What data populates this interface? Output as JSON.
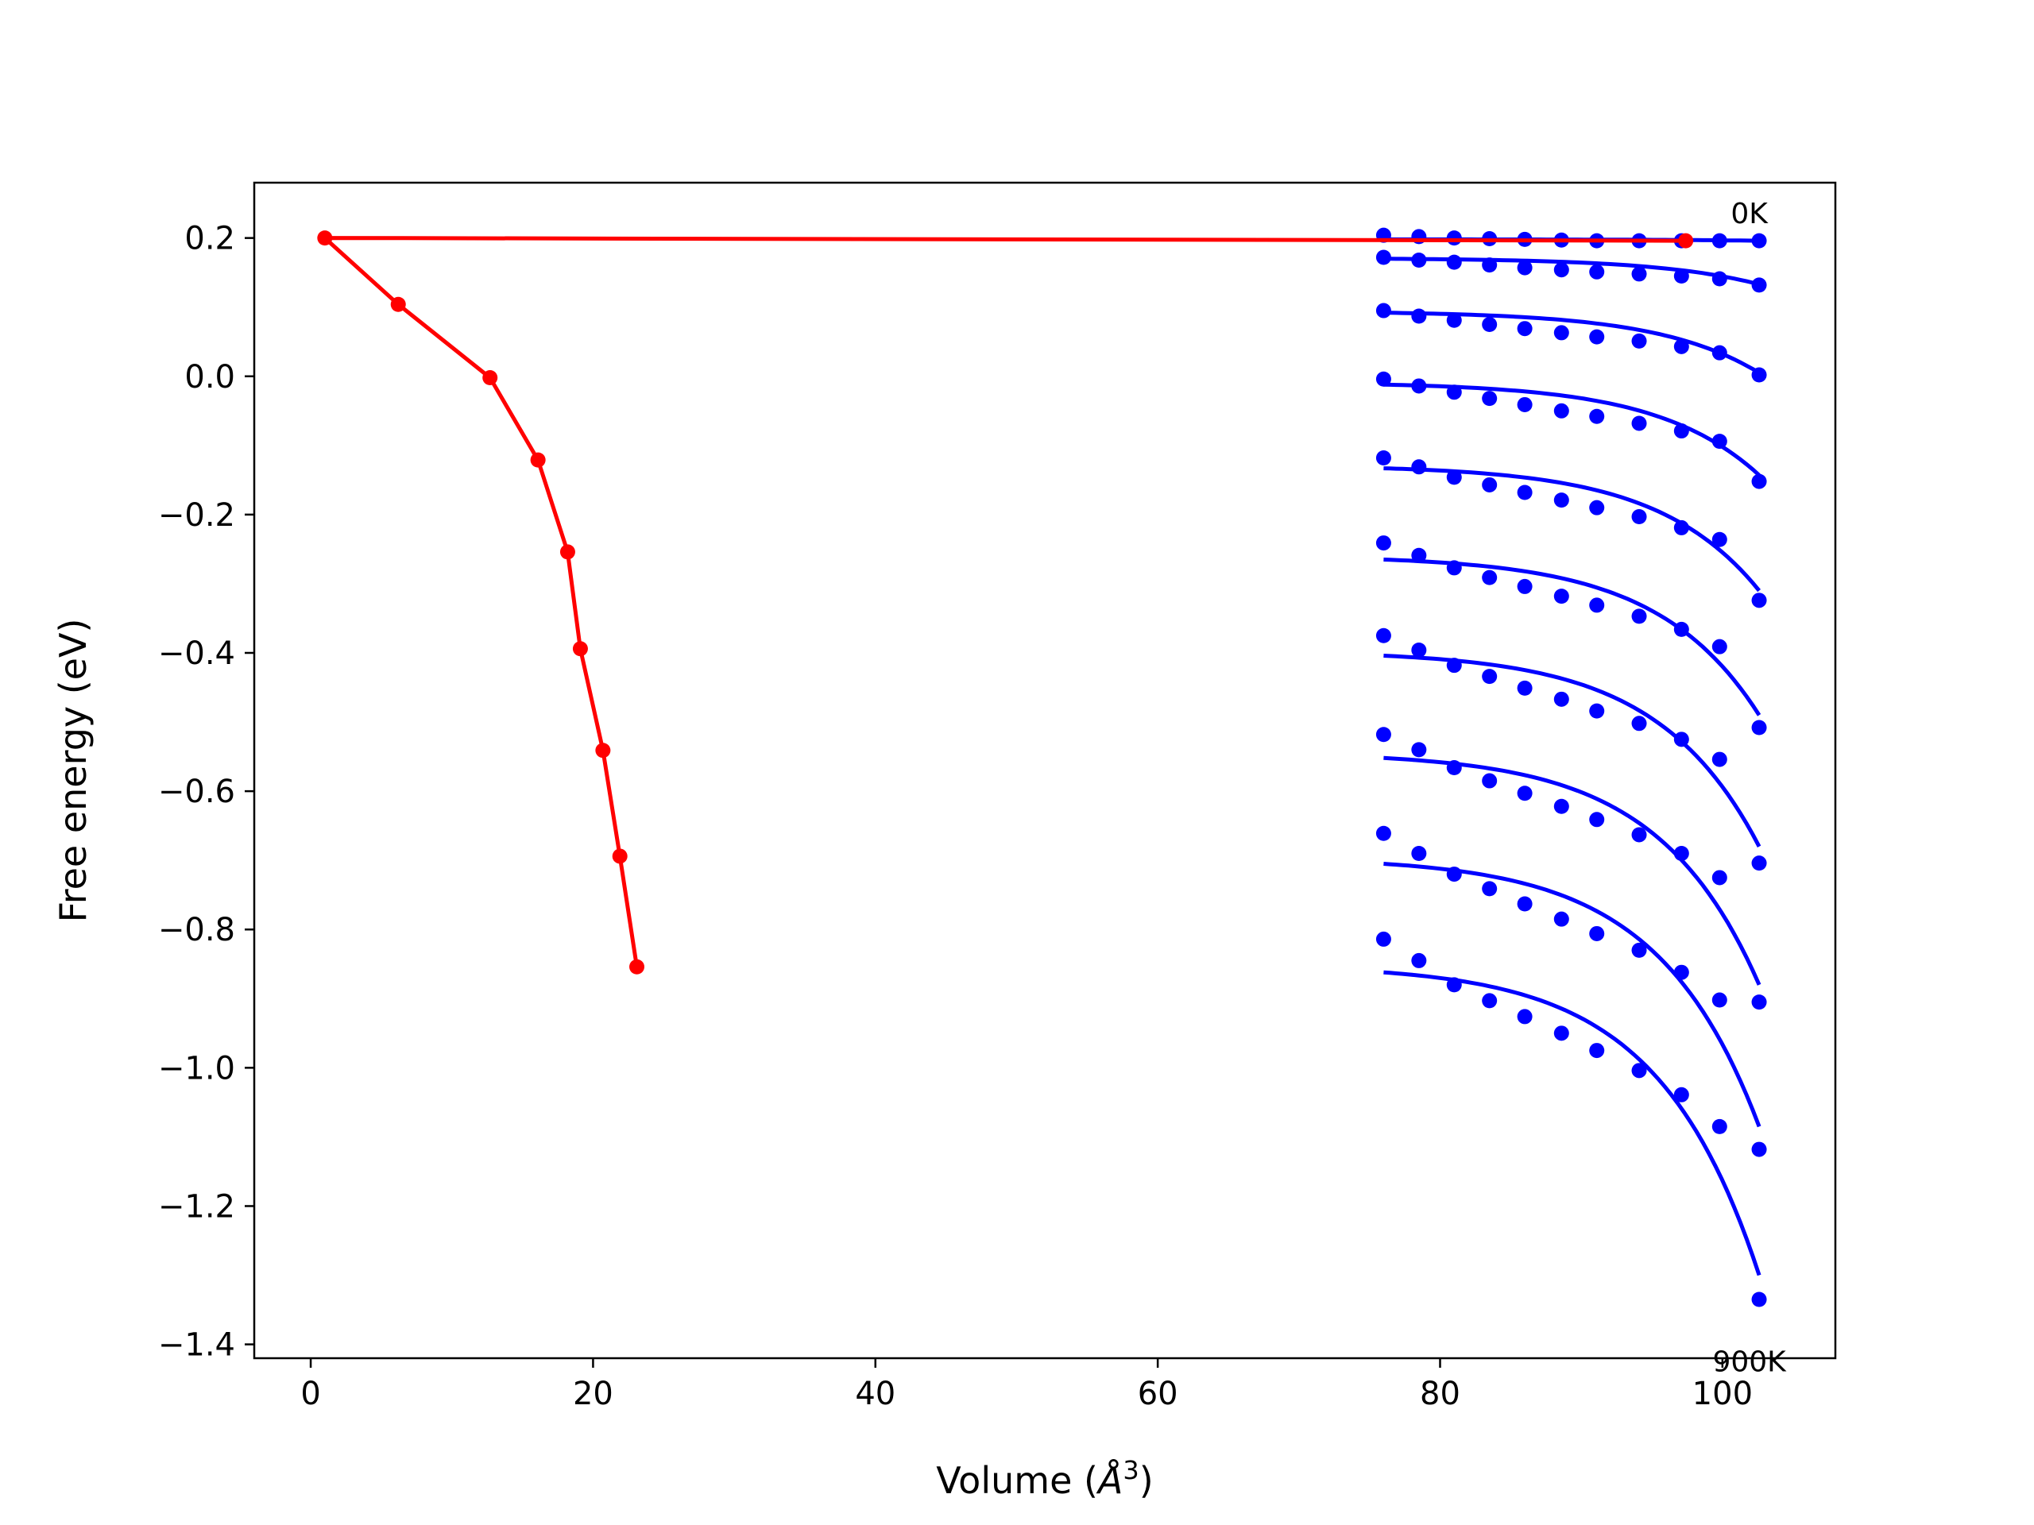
{
  "chart_data": {
    "type": "scatter",
    "xlabel": "Volume (",
    "xlabel_symbol": "Å",
    "xlabel_sup": "3",
    "xlabel_close": ")",
    "ylabel": "Free energy (eV)",
    "xlim": [
      -4,
      108
    ],
    "ylim": [
      -1.42,
      0.28
    ],
    "grid": false,
    "legend": "none",
    "x_ticks": [
      0,
      20,
      40,
      60,
      80,
      100
    ],
    "x_tick_labels": [
      "0",
      "20",
      "40",
      "60",
      "80",
      "100"
    ],
    "y_ticks": [
      0.2,
      0.0,
      -0.2,
      -0.4,
      -0.6,
      -0.8,
      -1.0,
      -1.2,
      -1.4
    ],
    "y_tick_labels": [
      "0.2",
      "0.0",
      "−0.2",
      "−0.4",
      "−0.6",
      "−0.8",
      "−1.0",
      "−1.2",
      "−1.4"
    ],
    "annotations": [
      {
        "text": "0K",
        "x": 101.9,
        "y": 0.235
      },
      {
        "text": "900K",
        "x": 101.9,
        "y": -1.425
      }
    ],
    "colors": {
      "points": "#0000ff",
      "fits": "#0000ff",
      "path": "#ff0000"
    },
    "x": [
      76.0,
      78.5,
      81.0,
      83.5,
      86.0,
      88.6,
      91.1,
      94.1,
      97.1,
      99.8,
      102.6
    ],
    "series": [
      {
        "values": [
          0.204,
          0.202,
          0.2,
          0.199,
          0.198,
          0.197,
          0.196,
          0.196,
          0.196,
          0.196,
          0.196
        ],
        "fit": [
          0.198,
          0.196
        ]
      },
      {
        "values": [
          0.172,
          0.168,
          0.165,
          0.161,
          0.157,
          0.154,
          0.151,
          0.148,
          0.145,
          0.141,
          0.132
        ],
        "fit": [
          0.17,
          0.133
        ]
      },
      {
        "values": [
          0.095,
          0.087,
          0.081,
          0.075,
          0.069,
          0.063,
          0.057,
          0.051,
          0.043,
          0.034,
          0.002
        ],
        "fit": [
          0.092,
          0.005
        ]
      },
      {
        "values": [
          -0.004,
          -0.014,
          -0.023,
          -0.032,
          -0.041,
          -0.05,
          -0.058,
          -0.068,
          -0.079,
          -0.094,
          -0.152
        ],
        "fit": [
          -0.012,
          -0.143
        ]
      },
      {
        "values": [
          -0.118,
          -0.131,
          -0.146,
          -0.157,
          -0.168,
          -0.179,
          -0.19,
          -0.203,
          -0.219,
          -0.236,
          -0.324
        ],
        "fit": [
          -0.133,
          -0.31
        ]
      },
      {
        "values": [
          -0.241,
          -0.259,
          -0.277,
          -0.291,
          -0.304,
          -0.318,
          -0.331,
          -0.347,
          -0.366,
          -0.391,
          -0.508
        ],
        "fit": [
          -0.265,
          -0.49
        ]
      },
      {
        "values": [
          -0.375,
          -0.396,
          -0.418,
          -0.434,
          -0.451,
          -0.467,
          -0.484,
          -0.502,
          -0.525,
          -0.554,
          -0.704
        ],
        "fit": [
          -0.404,
          -0.68
        ]
      },
      {
        "values": [
          -0.518,
          -0.54,
          -0.566,
          -0.585,
          -0.603,
          -0.622,
          -0.641,
          -0.663,
          -0.69,
          -0.725,
          -0.905
        ],
        "fit": [
          -0.552,
          -0.88
        ]
      },
      {
        "values": [
          -0.661,
          -0.69,
          -0.72,
          -0.741,
          -0.763,
          -0.785,
          -0.806,
          -0.83,
          -0.862,
          -0.902,
          -1.118
        ],
        "fit": [
          -0.705,
          -1.085
        ]
      },
      {
        "values": [
          -0.814,
          -0.845,
          -0.88,
          -0.903,
          -0.926,
          -0.95,
          -0.975,
          -1.004,
          -1.039,
          -1.085,
          -1.335
        ],
        "fit": [
          -0.862,
          -1.3
        ]
      }
    ],
    "path": {
      "x": [
        1.0,
        6.2,
        12.7,
        16.1,
        18.2,
        19.1,
        20.7,
        21.9,
        23.1,
        97.4
      ],
      "y": [
        0.2,
        0.104,
        -0.002,
        -0.121,
        -0.254,
        -0.394,
        -0.541,
        -0.694,
        -0.854,
        0.196
      ],
      "order": [
        9,
        0,
        1,
        2,
        3,
        4,
        5,
        6,
        7,
        8
      ]
    }
  }
}
